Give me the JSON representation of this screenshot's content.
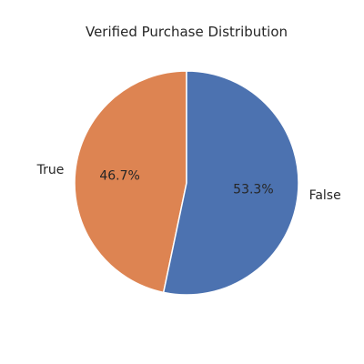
{
  "chart_data": {
    "type": "pie",
    "title": "Verified Purchase Distribution",
    "slices": [
      {
        "label": "True",
        "value": 46.7,
        "percent_label": "46.7%",
        "color": "#dd8452"
      },
      {
        "label": "False",
        "value": 53.3,
        "percent_label": "53.3%",
        "color": "#4c72b0"
      }
    ],
    "start_angle_deg": 90,
    "direction": "counterclockwise"
  }
}
